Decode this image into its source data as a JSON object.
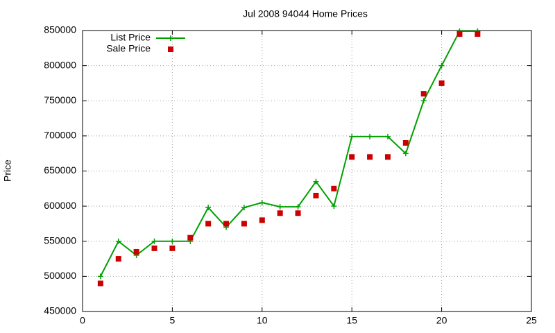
{
  "chart_data": {
    "type": "line",
    "title": "Jul 2008 94044 Home Prices",
    "y_label": "Price",
    "x": [
      1,
      2,
      3,
      4,
      5,
      6,
      7,
      8,
      9,
      10,
      11,
      12,
      13,
      14,
      15,
      16,
      17,
      18,
      19,
      20,
      21,
      22
    ],
    "series": [
      {
        "name": "List Price",
        "color": "#00a000",
        "type": "line",
        "values": [
          500000,
          550000,
          530000,
          550000,
          550000,
          550000,
          598000,
          570000,
          598000,
          605000,
          599000,
          599000,
          635000,
          600000,
          699000,
          699000,
          699000,
          675000,
          750000,
          800000,
          849000,
          849000
        ]
      },
      {
        "name": "Sale Price",
        "color": "#cc0000",
        "type": "scatter",
        "values": [
          490000,
          525000,
          535000,
          540000,
          540000,
          555000,
          575000,
          575000,
          575000,
          580000,
          590000,
          590000,
          615000,
          625000,
          670000,
          670000,
          670000,
          690000,
          760000,
          775000,
          845000,
          845000
        ]
      }
    ],
    "xlim": [
      0,
      25
    ],
    "xticks": [
      0,
      5,
      10,
      15,
      20,
      25
    ],
    "ylim": [
      450000,
      850000
    ],
    "yticks": [
      450000,
      500000,
      550000,
      600000,
      650000,
      700000,
      750000,
      800000,
      850000
    ],
    "grid": true,
    "legend": "top-left"
  }
}
